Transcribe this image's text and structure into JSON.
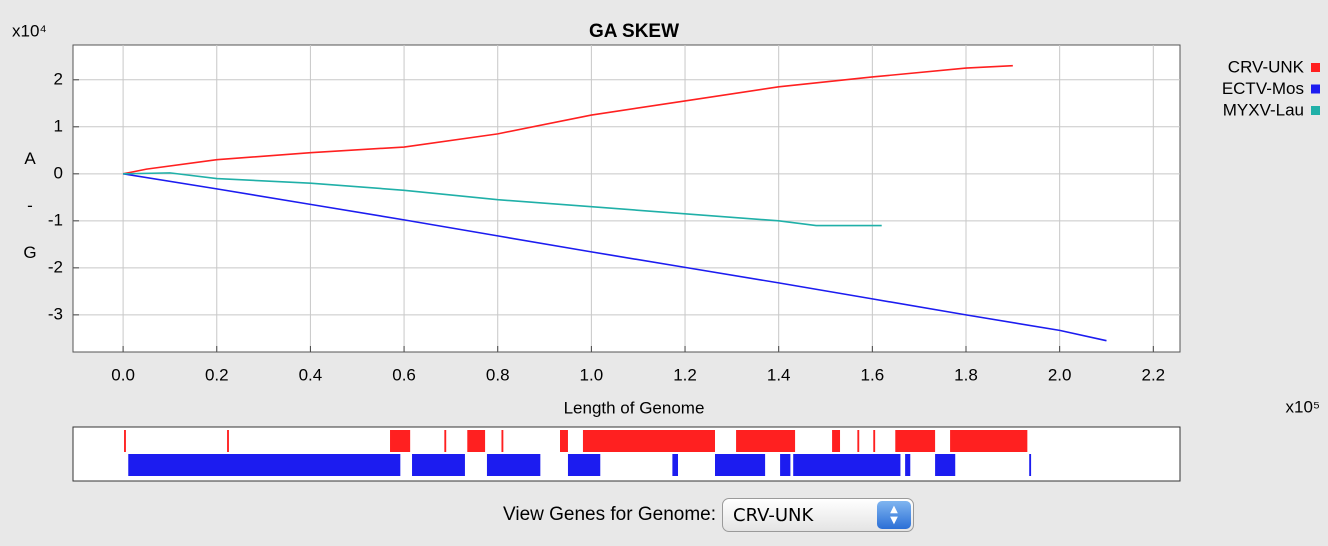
{
  "chart_data": {
    "type": "line",
    "title": "GA SKEW",
    "x_label": "Length of Genome",
    "y_label": "A-G",
    "x_multiplier": "x10⁵",
    "y_multiplier": "x10⁴",
    "xlim": [
      -0.107,
      2.257
    ],
    "ylim": [
      -3.79,
      2.74
    ],
    "xticks": [
      {
        "value": 0,
        "label": "0.0"
      },
      0.2,
      0.4,
      0.6,
      0.8,
      {
        "value": 1,
        "label": "1.0"
      },
      1.2,
      1.4,
      1.6,
      1.8,
      {
        "value": 2,
        "label": "2.0"
      },
      2.2
    ],
    "yticks": [
      -3,
      -2,
      -1,
      0,
      1,
      2
    ],
    "grid": true,
    "series": [
      {
        "name": "CRV-UNK",
        "color": "#ff2020",
        "x": [
          0,
          0.05,
          0.2,
          0.4,
          0.6,
          0.8,
          1.0,
          1.2,
          1.4,
          1.6,
          1.8,
          1.9
        ],
        "values": [
          0,
          0.1,
          0.3,
          0.45,
          0.57,
          0.85,
          1.25,
          1.55,
          1.85,
          2.06,
          2.25,
          2.3
        ]
      },
      {
        "name": "ECTV-Mos",
        "color": "#1c1cf0",
        "x": [
          0,
          0.2,
          0.4,
          0.6,
          0.8,
          1.0,
          1.2,
          1.4,
          1.6,
          1.8,
          2.0,
          2.1
        ],
        "values": [
          0,
          -0.32,
          -0.65,
          -0.98,
          -1.32,
          -1.66,
          -1.99,
          -2.32,
          -2.66,
          -3.0,
          -3.33,
          -3.55
        ]
      },
      {
        "name": "MYXV-Lau",
        "color": "#20b0a8",
        "x": [
          0,
          0.1,
          0.2,
          0.4,
          0.6,
          0.8,
          1.0,
          1.2,
          1.4,
          1.48,
          1.62
        ],
        "values": [
          0,
          0.02,
          -0.1,
          -0.2,
          -0.35,
          -0.55,
          -0.7,
          -0.85,
          -1.0,
          -1.1,
          -1.1
        ]
      }
    ],
    "gene_tracks": [
      {
        "color": "#ff2020",
        "ranges": [
          [
            0.002,
            0.006
          ],
          [
            0.222,
            0.226
          ],
          [
            0.57,
            0.613
          ],
          [
            0.686,
            0.69
          ],
          [
            0.735,
            0.773
          ],
          [
            0.808,
            0.812
          ],
          [
            0.933,
            0.95
          ],
          [
            0.982,
            1.264
          ],
          [
            1.309,
            1.435
          ],
          [
            1.514,
            1.531
          ],
          [
            1.568,
            1.572
          ],
          [
            1.602,
            1.606
          ],
          [
            1.649,
            1.734
          ],
          [
            1.766,
            1.931
          ]
        ]
      },
      {
        "color": "#1c1cf0",
        "ranges": [
          [
            0.011,
            0.592
          ],
          [
            0.617,
            0.73
          ],
          [
            0.777,
            0.891
          ],
          [
            0.95,
            1.019
          ],
          [
            1.173,
            1.185
          ],
          [
            1.264,
            1.371
          ],
          [
            1.403,
            1.425
          ],
          [
            1.431,
            1.66
          ],
          [
            1.67,
            1.681
          ],
          [
            1.734,
            1.777
          ],
          [
            1.935,
            1.939
          ]
        ]
      }
    ]
  },
  "controls": {
    "label": "View Genes for Genome:",
    "selected": "CRV-UNK"
  }
}
